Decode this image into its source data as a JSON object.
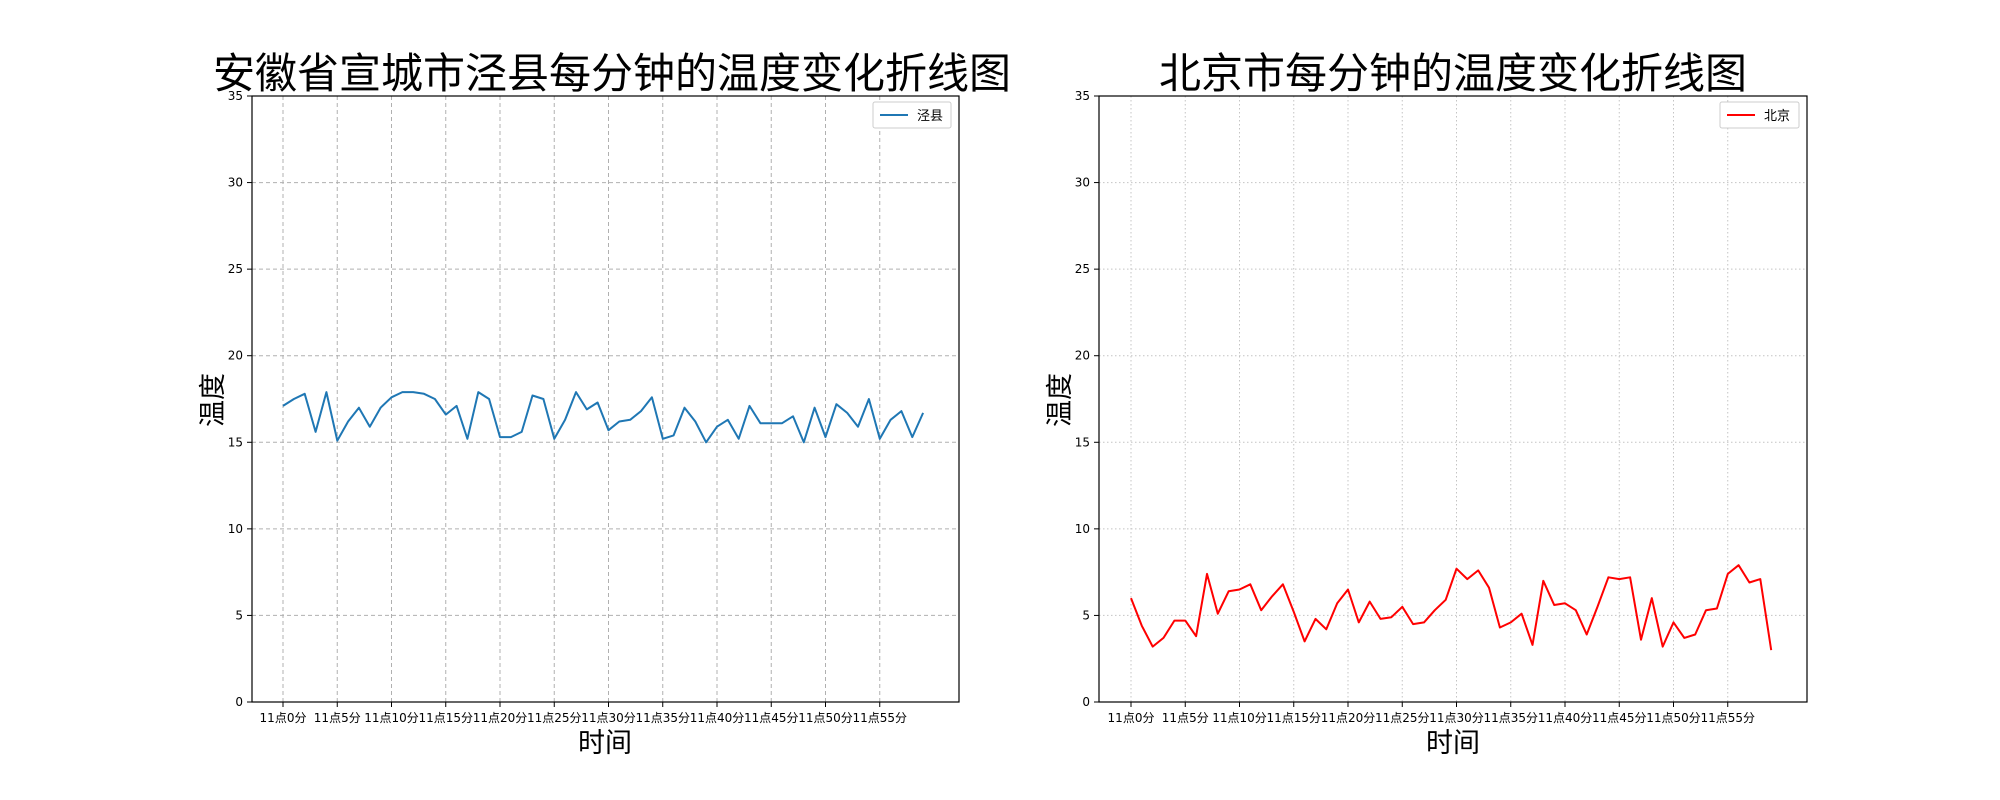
{
  "chart_data": [
    {
      "type": "line",
      "title": "安徽省宣城市泾县每分钟的温度变化折线图",
      "xlabel": "时间",
      "ylabel": "温度",
      "ylim": [
        0,
        35
      ],
      "yticks": [
        0,
        5,
        10,
        15,
        20,
        25,
        30,
        35
      ],
      "xticklabels": [
        "11点0分",
        "11点5分",
        "11点10分",
        "11点15分",
        "11点20分",
        "11点25分",
        "11点30分",
        "11点35分",
        "11点40分",
        "11点45分",
        "11点50分",
        "11点55分"
      ],
      "grid": "dashed",
      "legend_position": "upper-right",
      "series": [
        {
          "name": "泾县",
          "color": "#1f77b4",
          "x": [
            0,
            1,
            2,
            3,
            4,
            5,
            6,
            7,
            8,
            9,
            10,
            11,
            12,
            13,
            14,
            15,
            16,
            17,
            18,
            19,
            20,
            21,
            22,
            23,
            24,
            25,
            26,
            27,
            28,
            29,
            30,
            31,
            32,
            33,
            34,
            35,
            36,
            37,
            38,
            39,
            40,
            41,
            42,
            43,
            44,
            45,
            46,
            47,
            48,
            49,
            50,
            51,
            52,
            53,
            54,
            55,
            56,
            57,
            58,
            59
          ],
          "values": [
            17.1,
            17.5,
            17.8,
            15.6,
            17.9,
            15.1,
            16.2,
            17.0,
            15.9,
            17.0,
            17.6,
            17.9,
            17.9,
            17.8,
            17.5,
            16.6,
            17.1,
            15.2,
            17.9,
            17.5,
            15.3,
            15.3,
            15.6,
            17.7,
            17.5,
            15.2,
            16.3,
            17.9,
            16.9,
            17.3,
            15.7,
            16.2,
            16.3,
            16.8,
            17.6,
            15.2,
            15.4,
            17.0,
            16.2,
            15.0,
            15.9,
            16.3,
            15.2,
            17.1,
            16.1,
            16.1,
            16.1,
            16.5,
            15.0,
            17.0,
            15.3,
            17.2,
            16.7,
            15.9,
            17.5,
            15.2,
            16.3,
            16.8,
            15.3,
            16.7
          ]
        }
      ]
    },
    {
      "type": "line",
      "title": "北京市每分钟的温度变化折线图",
      "xlabel": "时间",
      "ylabel": "温度",
      "ylim": [
        0,
        35
      ],
      "yticks": [
        0,
        5,
        10,
        15,
        20,
        25,
        30,
        35
      ],
      "xticklabels": [
        "11点0分",
        "11点5分",
        "11点10分",
        "11点15分",
        "11点20分",
        "11点25分",
        "11点30分",
        "11点35分",
        "11点40分",
        "11点45分",
        "11点50分",
        "11点55分"
      ],
      "grid": "dotted",
      "legend_position": "upper-right",
      "series": [
        {
          "name": "北京",
          "color": "#ff0000",
          "x": [
            0,
            1,
            2,
            3,
            4,
            5,
            6,
            7,
            8,
            9,
            10,
            11,
            12,
            13,
            14,
            15,
            16,
            17,
            18,
            19,
            20,
            21,
            22,
            23,
            24,
            25,
            26,
            27,
            28,
            29,
            30,
            31,
            32,
            33,
            34,
            35,
            36,
            37,
            38,
            39,
            40,
            41,
            42,
            43,
            44,
            45,
            46,
            47,
            48,
            49,
            50,
            51,
            52,
            53,
            54,
            55,
            56,
            57,
            58,
            59
          ],
          "values": [
            6.0,
            4.4,
            3.2,
            3.7,
            4.7,
            4.7,
            3.8,
            7.4,
            5.1,
            6.4,
            6.5,
            6.8,
            5.3,
            6.1,
            6.8,
            5.2,
            3.5,
            4.8,
            4.2,
            5.7,
            6.5,
            4.6,
            5.8,
            4.8,
            4.9,
            5.5,
            4.5,
            4.6,
            5.3,
            5.9,
            7.7,
            7.1,
            7.6,
            6.6,
            4.3,
            4.6,
            5.1,
            3.3,
            7.0,
            5.6,
            5.7,
            5.3,
            3.9,
            5.5,
            7.2,
            7.1,
            7.2,
            3.6,
            6.0,
            3.2,
            4.6,
            3.7,
            3.9,
            5.3,
            5.4,
            7.4,
            7.9,
            6.9,
            7.1,
            3.0
          ]
        }
      ]
    }
  ]
}
